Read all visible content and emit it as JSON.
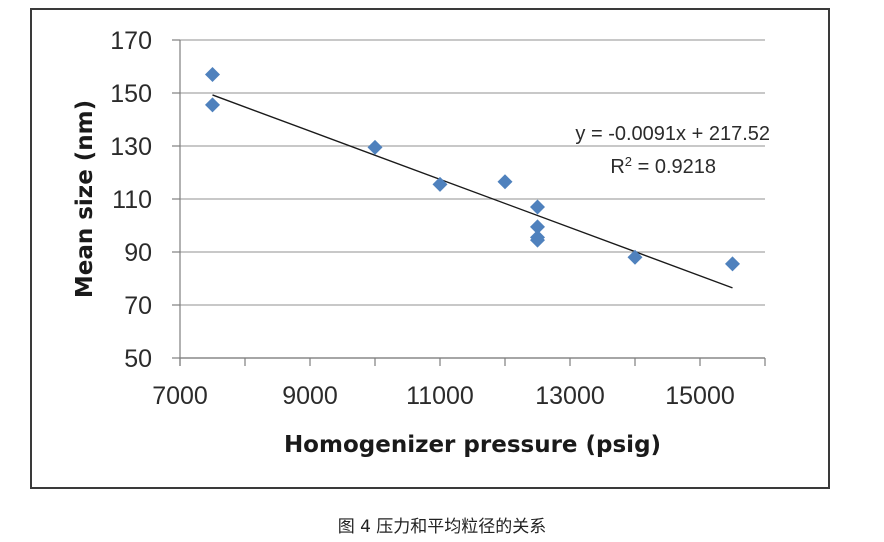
{
  "chart_data": {
    "type": "scatter",
    "title": "",
    "xlabel": "Homogenizer pressure (psig)",
    "ylabel": "Mean size (nm)",
    "xlim": [
      7000,
      16000
    ],
    "ylim": [
      50,
      170
    ],
    "x_ticks": [
      "7000",
      "9000",
      "11000",
      "13000",
      "15000"
    ],
    "y_ticks": [
      "50",
      "70",
      "90",
      "110",
      "130",
      "150",
      "170"
    ],
    "grid": "horizontal",
    "series": [
      {
        "marker": "diamond",
        "color": "#4f81bd",
        "points": [
          {
            "x": 7500,
            "y": 157
          },
          {
            "x": 7500,
            "y": 145.5
          },
          {
            "x": 10000,
            "y": 129.5
          },
          {
            "x": 11000,
            "y": 115.5
          },
          {
            "x": 12000,
            "y": 116.5
          },
          {
            "x": 12500,
            "y": 107
          },
          {
            "x": 12500,
            "y": 99.5
          },
          {
            "x": 12500,
            "y": 95.5
          },
          {
            "x": 12500,
            "y": 94.5
          },
          {
            "x": 14000,
            "y": 88
          },
          {
            "x": 15500,
            "y": 85.5
          }
        ]
      }
    ],
    "trendline": {
      "slope": -0.0091,
      "intercept": 217.52,
      "x_range": [
        7500,
        15500
      ],
      "color": "#1a1a1a"
    },
    "annotations": {
      "equation": "y = -0.0091x + 217.52",
      "r2_prefix": "R",
      "r2_sup": "2",
      "r2_suffix": " = 0.9218"
    }
  },
  "caption": "图 4 压力和平均粒径的关系",
  "colors": {
    "marker": "#4f81bd",
    "grid": "#a6a6a6",
    "frame": "#3a3a3a"
  }
}
